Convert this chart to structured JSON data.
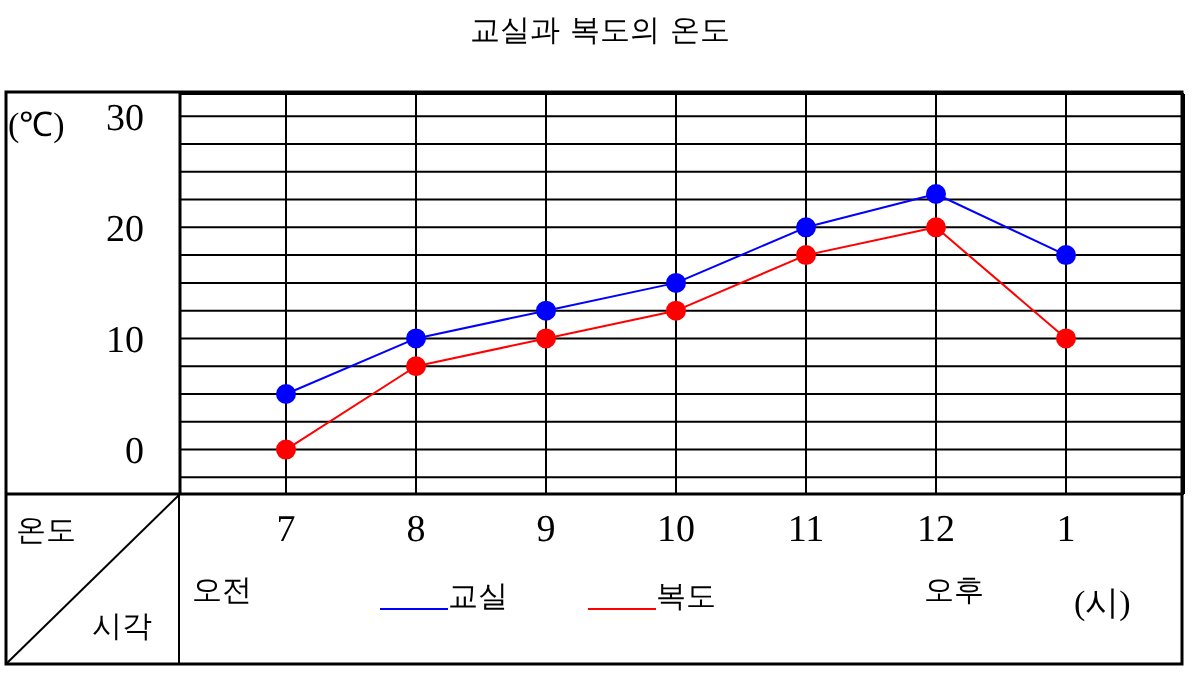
{
  "chart_data": {
    "type": "line",
    "title": "교실과 복도의 온도",
    "ylabel": "(℃)",
    "xlabel": "(시)",
    "categories": [
      "7",
      "8",
      "9",
      "10",
      "11",
      "12",
      "1"
    ],
    "series": [
      {
        "name": "교실",
        "color": "#0000ff",
        "values": [
          5,
          10,
          12.5,
          15,
          20,
          23,
          17.5
        ]
      },
      {
        "name": "복도",
        "color": "#ff0000",
        "values": [
          0,
          7.5,
          10,
          12.5,
          17.5,
          20,
          10
        ]
      }
    ],
    "ylim": [
      -4,
      32
    ],
    "yticks": [
      {
        "value": -2.5,
        "label": null
      },
      0,
      {
        "value": 2.5,
        "label": null
      },
      {
        "value": 5,
        "label": null
      },
      {
        "value": 7.5,
        "label": null
      },
      10,
      {
        "value": 12.5,
        "label": null
      },
      {
        "value": 15,
        "label": null
      },
      {
        "value": 17.5,
        "label": null
      },
      20,
      {
        "value": 22.5,
        "label": null
      },
      {
        "value": 25,
        "label": null
      },
      {
        "value": 27.5,
        "label": null
      },
      30
    ],
    "grid": true,
    "legend": "bottom",
    "marker": "circle",
    "line_style": "solid",
    "annotations": [
      "오전",
      "오후",
      "온도",
      "시각"
    ]
  }
}
